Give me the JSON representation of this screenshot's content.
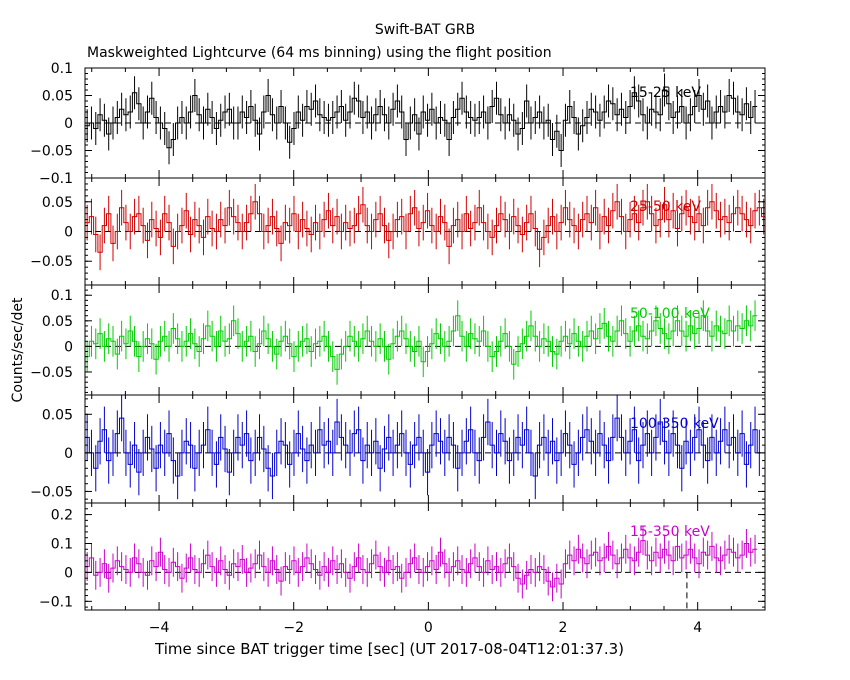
{
  "chart_data": {
    "type": "line",
    "title": "Swift-BAT GRB",
    "subtitle": "Maskweighted Lightcurve (64 ms binning) using the flight position",
    "xlabel": "Time since BAT trigger time [sec] (UT 2017-08-04T12:01:37.3)",
    "ylabel": "Counts/sec/det",
    "xlim": [
      -5.1,
      5.0
    ],
    "x_ticks": [
      -4,
      -2,
      0,
      2,
      4
    ],
    "x_tick_labels": [
      "−4",
      "−2",
      "0",
      "2",
      "4"
    ],
    "bin_width_sec": 0.064,
    "trigger_marker_x": 3.84,
    "panels": [
      {
        "name": "15-25 keV",
        "color": "#000000",
        "ylim": [
          -0.1,
          0.1
        ],
        "y_ticks": [
          -0.1,
          -0.05,
          0,
          0.05,
          0.1
        ],
        "y_tick_labels": [
          "−0.1",
          "−0.05",
          "0",
          "0.05",
          "0.1"
        ],
        "error": 0.03,
        "values": [
          -0.005,
          0.0,
          -0.01,
          0.015,
          0.005,
          -0.02,
          0.0,
          0.01,
          0.025,
          0.015,
          0.02,
          0.055,
          0.035,
          0.0,
          0.02,
          0.045,
          0.01,
          0.0,
          -0.01,
          -0.045,
          -0.03,
          0.0,
          0.01,
          0.0,
          0.02,
          0.05,
          0.015,
          0.0,
          0.025,
          0.01,
          -0.01,
          0.005,
          0.02,
          0.025,
          0.0,
          0.0,
          0.02,
          0.01,
          0.03,
          0.005,
          -0.02,
          0.02,
          0.05,
          0.015,
          0.0,
          0.03,
          0.0,
          -0.035,
          -0.01,
          0.02,
          0.005,
          0.03,
          0.025,
          0.04,
          0.015,
          0.01,
          0.005,
          0.01,
          0.02,
          0.03,
          0.005,
          0.02,
          0.045,
          0.04,
          0.01,
          0.02,
          0.0,
          0.015,
          0.03,
          0.015,
          0.0,
          0.025,
          0.04,
          0.02,
          -0.03,
          0.0,
          0.015,
          -0.02,
          0.02,
          0.005,
          0.025,
          0.0,
          0.01,
          0.005,
          -0.03,
          0.01,
          0.025,
          0.045,
          0.02,
          0.01,
          0.005,
          0.01,
          0.02,
          0.0,
          0.03,
          0.045,
          0.015,
          0.0,
          0.015,
          0.005,
          -0.02,
          -0.01,
          0.04,
          0.0,
          0.01,
          0.02,
          0.0,
          0.005,
          -0.03,
          -0.015,
          -0.05,
          0.005,
          0.03,
          0.01,
          -0.02,
          -0.005,
          0.01,
          0.025,
          0.02,
          0.005,
          0.02,
          0.04,
          0.035,
          0.015,
          0.025,
          0.01,
          0.03,
          0.055,
          0.04,
          0.015,
          0.0,
          0.025,
          0.02,
          0.015,
          0.06,
          0.035,
          0.01,
          0.02,
          0.03,
          0.0,
          0.015,
          0.03,
          0.05,
          0.025,
          0.04,
          0.0,
          0.02,
          0.03,
          0.02,
          0.05,
          0.045,
          0.02,
          0.015,
          0.035,
          0.01,
          0.03
        ]
      },
      {
        "name": "25-50 keV",
        "color": "#d00000",
        "ylim": [
          -0.09,
          0.09
        ],
        "y_ticks": [
          -0.05,
          0,
          0.05
        ],
        "y_tick_labels": [
          "−0.05",
          "0",
          "0.05"
        ],
        "error": 0.03,
        "values": [
          0.015,
          0.025,
          -0.005,
          -0.035,
          0.01,
          0.03,
          -0.02,
          0.0,
          0.04,
          0.015,
          0.0,
          0.025,
          0.03,
          0.01,
          -0.015,
          0.02,
          0.005,
          -0.01,
          0.03,
          0.015,
          -0.025,
          0.0,
          0.01,
          0.035,
          -0.005,
          0.02,
          0.01,
          -0.01,
          0.025,
          0.005,
          0.0,
          0.02,
          0.01,
          0.04,
          0.025,
          0.015,
          0.0,
          0.015,
          0.03,
          0.05,
          0.03,
          0.0,
          0.01,
          0.025,
          0.005,
          -0.02,
          0.015,
          0.01,
          0.03,
          0.0,
          0.02,
          0.005,
          -0.005,
          0.015,
          0.0,
          0.02,
          0.035,
          0.01,
          0.025,
          0.0,
          0.015,
          0.005,
          0.01,
          0.03,
          0.045,
          0.01,
          0.0,
          0.02,
          0.03,
          0.01,
          -0.015,
          0.0,
          0.02,
          0.025,
          0.0,
          0.03,
          0.04,
          0.005,
          0.015,
          0.035,
          0.01,
          0.0,
          0.025,
          0.015,
          -0.025,
          0.01,
          0.02,
          0.0,
          0.03,
          0.005,
          0.015,
          0.04,
          0.015,
          0.0,
          -0.01,
          0.01,
          0.03,
          0.02,
          0.0,
          0.025,
          0.01,
          -0.005,
          0.015,
          0.03,
          0.005,
          -0.03,
          -0.01,
          0.01,
          0.025,
          0.0,
          0.015,
          0.04,
          0.02,
          0.01,
          0.0,
          0.02,
          0.03,
          0.015,
          0.04,
          0.0,
          0.025,
          0.01,
          0.035,
          0.05,
          0.025,
          0.0,
          0.02,
          0.03,
          0.015,
          0.04,
          0.05,
          0.03,
          0.01,
          0.02,
          0.045,
          0.02,
          0.035,
          0.005,
          0.03,
          0.04,
          0.025,
          0.015,
          0.03,
          0.01,
          0.04,
          0.05,
          0.035,
          0.02,
          0.025,
          0.015,
          0.03,
          0.04,
          0.03,
          0.02,
          0.01,
          0.035,
          0.04,
          0.025
        ]
      },
      {
        "name": "50-100 keV",
        "color": "#00cc00",
        "ylim": [
          -0.095,
          0.12
        ],
        "y_ticks": [
          -0.05,
          0,
          0.05,
          0.1
        ],
        "y_tick_labels": [
          "−0.05",
          "0",
          "0.05",
          "0.1"
        ],
        "error": 0.03,
        "values": [
          -0.02,
          0.01,
          0.005,
          0.025,
          0.0,
          0.015,
          0.01,
          -0.015,
          0.02,
          0.005,
          0.03,
          0.01,
          -0.02,
          0.0,
          0.015,
          0.005,
          -0.025,
          0.01,
          0.02,
          0.0,
          0.035,
          0.015,
          0.0,
          0.01,
          0.025,
          0.005,
          -0.01,
          0.015,
          0.04,
          0.02,
          0.0,
          0.03,
          0.01,
          0.015,
          0.05,
          0.025,
          0.0,
          0.01,
          0.02,
          -0.01,
          0.005,
          0.03,
          0.015,
          0.0,
          -0.015,
          0.01,
          0.02,
          0.005,
          -0.02,
          0.0,
          0.01,
          0.015,
          -0.01,
          0.005,
          0.01,
          0.02,
          0.0,
          -0.02,
          -0.045,
          -0.015,
          0.0,
          0.02,
          0.01,
          0.0,
          0.015,
          0.03,
          0.01,
          0.0,
          0.015,
          0.0,
          -0.025,
          0.005,
          0.02,
          0.03,
          0.015,
          0.0,
          -0.01,
          0.01,
          -0.03,
          -0.01,
          0.005,
          0.025,
          0.015,
          0.0,
          0.01,
          0.03,
          0.06,
          0.02,
          0.0,
          0.025,
          0.015,
          0.01,
          0.03,
          0.0,
          -0.02,
          -0.01,
          0.01,
          0.025,
          0.0,
          -0.035,
          -0.01,
          0.005,
          0.02,
          0.04,
          0.02,
          0.0,
          0.015,
          0.01,
          -0.01,
          -0.015,
          0.01,
          0.02,
          0.005,
          0.025,
          0.01,
          0.0,
          0.02,
          0.03,
          0.015,
          0.035,
          0.045,
          0.02,
          0.01,
          0.03,
          0.05,
          0.025,
          0.01,
          0.03,
          0.04,
          0.02,
          0.015,
          0.03,
          0.05,
          0.035,
          0.025,
          0.015,
          0.03,
          0.05,
          0.03,
          0.02,
          0.04,
          0.025,
          0.035,
          0.06,
          0.03,
          0.02,
          0.04,
          0.03,
          0.025,
          0.05,
          0.03,
          0.04,
          0.035,
          0.05,
          0.04,
          0.06
        ]
      },
      {
        "name": "100-350 keV",
        "color": "#0000cc",
        "ylim": [
          -0.065,
          0.075
        ],
        "y_ticks": [
          -0.05,
          0,
          0.05
        ],
        "y_tick_labels": [
          "−0.05",
          "0",
          "0.05"
        ],
        "error": 0.03,
        "values": [
          0.02,
          0.0,
          -0.02,
          0.015,
          0.03,
          -0.01,
          0.0,
          0.025,
          0.045,
          0.0,
          -0.015,
          0.01,
          -0.025,
          0.0,
          0.02,
          0.005,
          -0.02,
          0.01,
          0.0,
          0.025,
          -0.01,
          -0.03,
          0.0,
          0.015,
          0.01,
          -0.02,
          0.0,
          0.01,
          0.03,
          0.0,
          -0.015,
          0.02,
          0.005,
          -0.025,
          0.0,
          0.02,
          0.01,
          0.025,
          -0.01,
          0.0,
          0.02,
          0.005,
          -0.02,
          -0.03,
          0.0,
          0.015,
          0.01,
          -0.015,
          0.0,
          0.025,
          0.005,
          -0.01,
          0.01,
          0.0,
          0.03,
          0.01,
          0.015,
          0.0,
          0.04,
          0.02,
          0.01,
          0.0,
          0.025,
          0.03,
          -0.01,
          0.01,
          0.0,
          0.015,
          -0.02,
          0.005,
          0.02,
          0.0,
          0.01,
          0.025,
          0.0,
          -0.015,
          0.01,
          0.02,
          0.0,
          -0.025,
          0.01,
          0.025,
          0.015,
          0.0,
          0.02,
          0.01,
          -0.02,
          0.0,
          0.015,
          0.03,
          0.0,
          -0.01,
          0.02,
          0.04,
          0.01,
          0.0,
          0.025,
          0.015,
          -0.01,
          0.0,
          0.02,
          0.01,
          0.03,
          0.0,
          -0.03,
          0.01,
          0.02,
          0.0,
          0.015,
          -0.01,
          0.0,
          0.025,
          0.01,
          -0.015,
          0.0,
          0.02,
          0.03,
          0.015,
          0.0,
          0.025,
          0.01,
          -0.01,
          0.02,
          0.045,
          0.02,
          0.0,
          0.015,
          0.03,
          -0.01,
          0.01,
          0.025,
          0.0,
          0.02,
          0.04,
          0.015,
          0.0,
          0.025,
          0.01,
          -0.02,
          0.015,
          0.0,
          0.02,
          0.03,
          0.01,
          -0.01,
          0.02,
          0.0,
          0.015,
          0.03,
          0.01,
          0.02,
          0.0,
          0.025,
          -0.015,
          0.01,
          0.03,
          0.0
        ]
      },
      {
        "name": "15-350 keV",
        "color": "#cc00cc",
        "ylim": [
          -0.13,
          0.24
        ],
        "y_ticks": [
          -0.1,
          0,
          0.1,
          0.2
        ],
        "y_tick_labels": [
          "−0.1",
          "0",
          "0.1",
          "0.2"
        ],
        "error": 0.05,
        "values": [
          0.02,
          0.05,
          -0.01,
          0.0,
          0.03,
          -0.02,
          0.015,
          0.04,
          0.02,
          0.01,
          0.0,
          0.05,
          0.03,
          0.0,
          -0.01,
          0.04,
          0.02,
          0.07,
          0.01,
          0.0,
          0.035,
          0.02,
          -0.02,
          0.015,
          0.05,
          0.01,
          0.0,
          0.03,
          0.06,
          0.02,
          0.0,
          0.04,
          0.01,
          -0.01,
          0.03,
          0.02,
          0.045,
          0.0,
          0.015,
          0.03,
          0.06,
          0.02,
          0.0,
          0.04,
          0.01,
          -0.03,
          0.02,
          0.01,
          0.04,
          0.0,
          0.02,
          0.05,
          0.03,
          0.01,
          -0.01,
          0.02,
          0.0,
          0.04,
          0.01,
          0.03,
          0.0,
          -0.02,
          0.02,
          0.05,
          0.01,
          0.0,
          0.03,
          0.06,
          0.02,
          0.0,
          0.04,
          0.01,
          0.02,
          -0.02,
          0.0,
          0.03,
          0.05,
          0.01,
          0.0,
          0.02,
          0.04,
          0.01,
          0.07,
          0.03,
          0.0,
          0.02,
          0.04,
          0.01,
          0.0,
          0.03,
          0.05,
          0.02,
          0.0,
          0.04,
          0.01,
          0.02,
          0.0,
          0.03,
          0.05,
          0.02,
          -0.02,
          -0.04,
          -0.01,
          0.01,
          0.0,
          0.02,
          0.01,
          -0.03,
          -0.05,
          -0.02,
          -0.04,
          0.03,
          0.06,
          0.04,
          0.08,
          0.05,
          0.03,
          0.06,
          0.07,
          0.04,
          0.05,
          0.09,
          0.06,
          0.03,
          0.05,
          0.08,
          0.05,
          0.04,
          0.07,
          0.11,
          0.06,
          0.04,
          0.07,
          0.05,
          0.08,
          0.06,
          0.04,
          0.09,
          0.05,
          0.06,
          0.08,
          0.05,
          0.03,
          0.07,
          0.06,
          0.09,
          0.05,
          0.04,
          0.06,
          0.08,
          0.07,
          0.05,
          0.06,
          0.1,
          0.07,
          0.08
        ]
      }
    ],
    "grid": false,
    "legend": "none"
  },
  "figure": {
    "title_line_1": "Swift-BAT GRB",
    "title_line_2": "Maskweighted Lightcurve (64 ms binning) using the flight position",
    "xlabel": "Time since BAT trigger time [sec] (UT 2017-08-04T12:01:37.3)",
    "ylabel": "Counts/sec/det"
  }
}
